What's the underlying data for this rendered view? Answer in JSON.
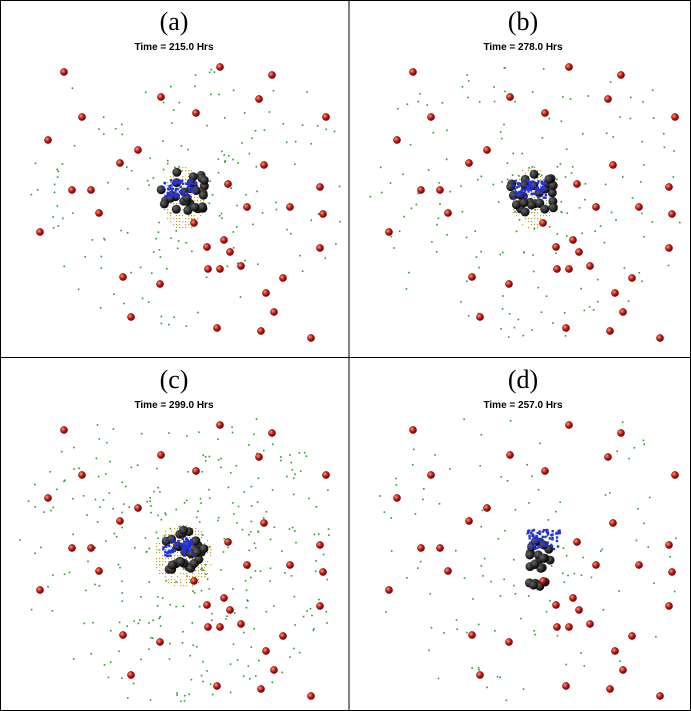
{
  "panels": [
    {
      "label": "(a)",
      "title": "Time = 215.0 Hrs"
    },
    {
      "label": "(b)",
      "title": "Time = 278.0 Hrs"
    },
    {
      "label": "(c)",
      "title": "Time = 299.0 Hrs"
    },
    {
      "label": "(d)",
      "title": "Time = 257.0 Hrs"
    }
  ]
}
